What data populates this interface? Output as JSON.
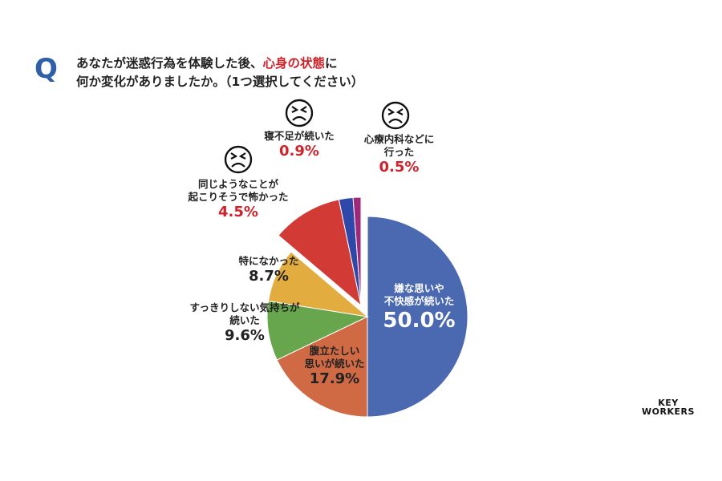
{
  "question": {
    "mark": "Q",
    "line1_before": "あなたが迷惑行為を体験した後、",
    "line1_highlight": "心身の状態",
    "line1_after": "に",
    "line2": "何か変化がありましたか。（1つ選択してください）"
  },
  "chart_data": {
    "type": "pie",
    "start": "top",
    "direction": "clockwise",
    "exploded_group": [
      "同じようなことが起こりそうで怖かった",
      "寝不足が続いた",
      "心療内科などに行った"
    ],
    "slices": [
      {
        "label": "嫌な思いや不快感が続いた",
        "value": 50.0,
        "display": "50.0%",
        "color": "#4a69b0"
      },
      {
        "label": "腹立たしい思いが続いた",
        "value": 17.9,
        "display": "17.9%",
        "color": "#cf6a45"
      },
      {
        "label": "すっきりしない気持ちが続いた",
        "value": 9.6,
        "display": "9.6%",
        "color": "#67a64c"
      },
      {
        "label": "特になかった",
        "value": 8.7,
        "display": "8.7%",
        "color": "#e3ac3e"
      },
      {
        "label": "同じようなことが起こりそうで怖かった",
        "value": 4.5,
        "display": "4.5%",
        "color": "#d23a35"
      },
      {
        "label": "寝不足が続いた",
        "value": 0.9,
        "display": "0.9%",
        "color": "#2f47a8"
      },
      {
        "label": "心療内科などに行った",
        "value": 0.5,
        "display": "0.5%",
        "color": "#a0287a"
      }
    ]
  },
  "labels": {
    "s0": {
      "l1": "嫌な思いや",
      "l2": "不快感が続いた",
      "pct": "50.0%"
    },
    "s1": {
      "l1": "腹立たしい",
      "l2": "思いが続いた",
      "pct": "17.9%"
    },
    "s2": {
      "l1": "すっきりしない気持ちが",
      "l2": "続いた",
      "pct": "9.6%"
    },
    "s3": {
      "l1": "特になかった",
      "pct": "8.7%"
    },
    "s4": {
      "l1": "同じようなことが",
      "l2": "起こりそうで怖かった",
      "pct": "4.5%"
    },
    "s5": {
      "l1": "寝不足が続いた",
      "pct": "0.9%"
    },
    "s6": {
      "l1": "心療内科などに",
      "l2": "行った",
      "pct": "0.5%"
    }
  },
  "icons": {
    "face": "distressed-face-icon"
  },
  "logo": {
    "line1": "KEY",
    "line2": "WORKERS"
  }
}
